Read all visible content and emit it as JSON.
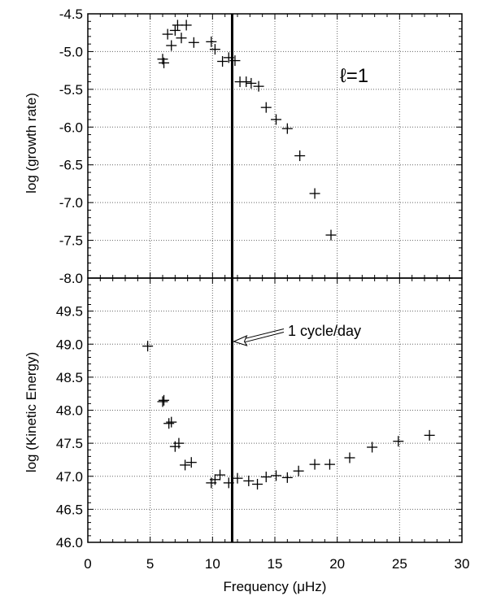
{
  "chart_data": [
    {
      "type": "scatter",
      "title": "",
      "xlabel": "Frequency (μHz)",
      "ylabel": "log (growth rate)",
      "xlim": [
        0,
        30
      ],
      "ylim": [
        -8.0,
        -4.5
      ],
      "xticks": [
        "0",
        "5",
        "10",
        "15",
        "20",
        "25",
        "30"
      ],
      "yticks": [
        "-8.0",
        "-7.5",
        "-7.0",
        "-6.5",
        "-6.0",
        "-5.5",
        "-5.0",
        "-4.5"
      ],
      "grid": true,
      "annotation": "ℓ=1",
      "points": [
        {
          "x": 6.0,
          "y": -5.1
        },
        {
          "x": 6.1,
          "y": -5.15
        },
        {
          "x": 6.4,
          "y": -4.77
        },
        {
          "x": 6.7,
          "y": -4.92
        },
        {
          "x": 7.0,
          "y": -4.72
        },
        {
          "x": 7.2,
          "y": -4.65
        },
        {
          "x": 7.5,
          "y": -4.82
        },
        {
          "x": 7.9,
          "y": -4.65
        },
        {
          "x": 8.5,
          "y": -4.88
        },
        {
          "x": 9.9,
          "y": -4.87
        },
        {
          "x": 10.2,
          "y": -4.97
        },
        {
          "x": 10.8,
          "y": -5.13
        },
        {
          "x": 11.3,
          "y": -5.08
        },
        {
          "x": 11.8,
          "y": -5.12
        },
        {
          "x": 12.2,
          "y": -5.4
        },
        {
          "x": 12.7,
          "y": -5.4
        },
        {
          "x": 13.1,
          "y": -5.42
        },
        {
          "x": 13.7,
          "y": -5.46
        },
        {
          "x": 14.3,
          "y": -5.74
        },
        {
          "x": 15.1,
          "y": -5.9
        },
        {
          "x": 16.0,
          "y": -6.02
        },
        {
          "x": 17.0,
          "y": -6.38
        },
        {
          "x": 18.2,
          "y": -6.88
        },
        {
          "x": 19.5,
          "y": -7.43
        }
      ]
    },
    {
      "type": "scatter",
      "title": "",
      "xlabel": "Frequency (μHz)",
      "ylabel": "log (Kinetic Energy)",
      "xlim": [
        0,
        30
      ],
      "ylim": [
        46.0,
        50.0
      ],
      "xticks": [
        "0",
        "5",
        "10",
        "15",
        "20",
        "25",
        "30"
      ],
      "yticks": [
        "46.0",
        "46.5",
        "47.0",
        "47.5",
        "48.0",
        "48.5",
        "49.0",
        "49.5"
      ],
      "grid": true,
      "annotation": "1 cycle/day",
      "points": [
        {
          "x": 4.8,
          "y": 48.97
        },
        {
          "x": 6.0,
          "y": 48.13
        },
        {
          "x": 6.1,
          "y": 48.15
        },
        {
          "x": 6.5,
          "y": 47.8
        },
        {
          "x": 6.7,
          "y": 47.82
        },
        {
          "x": 7.0,
          "y": 47.45
        },
        {
          "x": 7.3,
          "y": 47.5
        },
        {
          "x": 7.8,
          "y": 47.17
        },
        {
          "x": 8.3,
          "y": 47.21
        },
        {
          "x": 9.9,
          "y": 46.9
        },
        {
          "x": 10.2,
          "y": 46.95
        },
        {
          "x": 10.6,
          "y": 47.02
        },
        {
          "x": 11.3,
          "y": 46.9
        },
        {
          "x": 12.0,
          "y": 46.97
        },
        {
          "x": 12.9,
          "y": 46.93
        },
        {
          "x": 13.6,
          "y": 46.88
        },
        {
          "x": 14.3,
          "y": 46.99
        },
        {
          "x": 15.1,
          "y": 47.01
        },
        {
          "x": 16.0,
          "y": 46.98
        },
        {
          "x": 16.9,
          "y": 47.08
        },
        {
          "x": 18.2,
          "y": 47.18
        },
        {
          "x": 19.4,
          "y": 47.18
        },
        {
          "x": 21.0,
          "y": 47.28
        },
        {
          "x": 22.8,
          "y": 47.44
        },
        {
          "x": 24.9,
          "y": 47.53
        },
        {
          "x": 27.4,
          "y": 47.62
        }
      ]
    }
  ],
  "vertical_line": {
    "x": 11.574
  }
}
